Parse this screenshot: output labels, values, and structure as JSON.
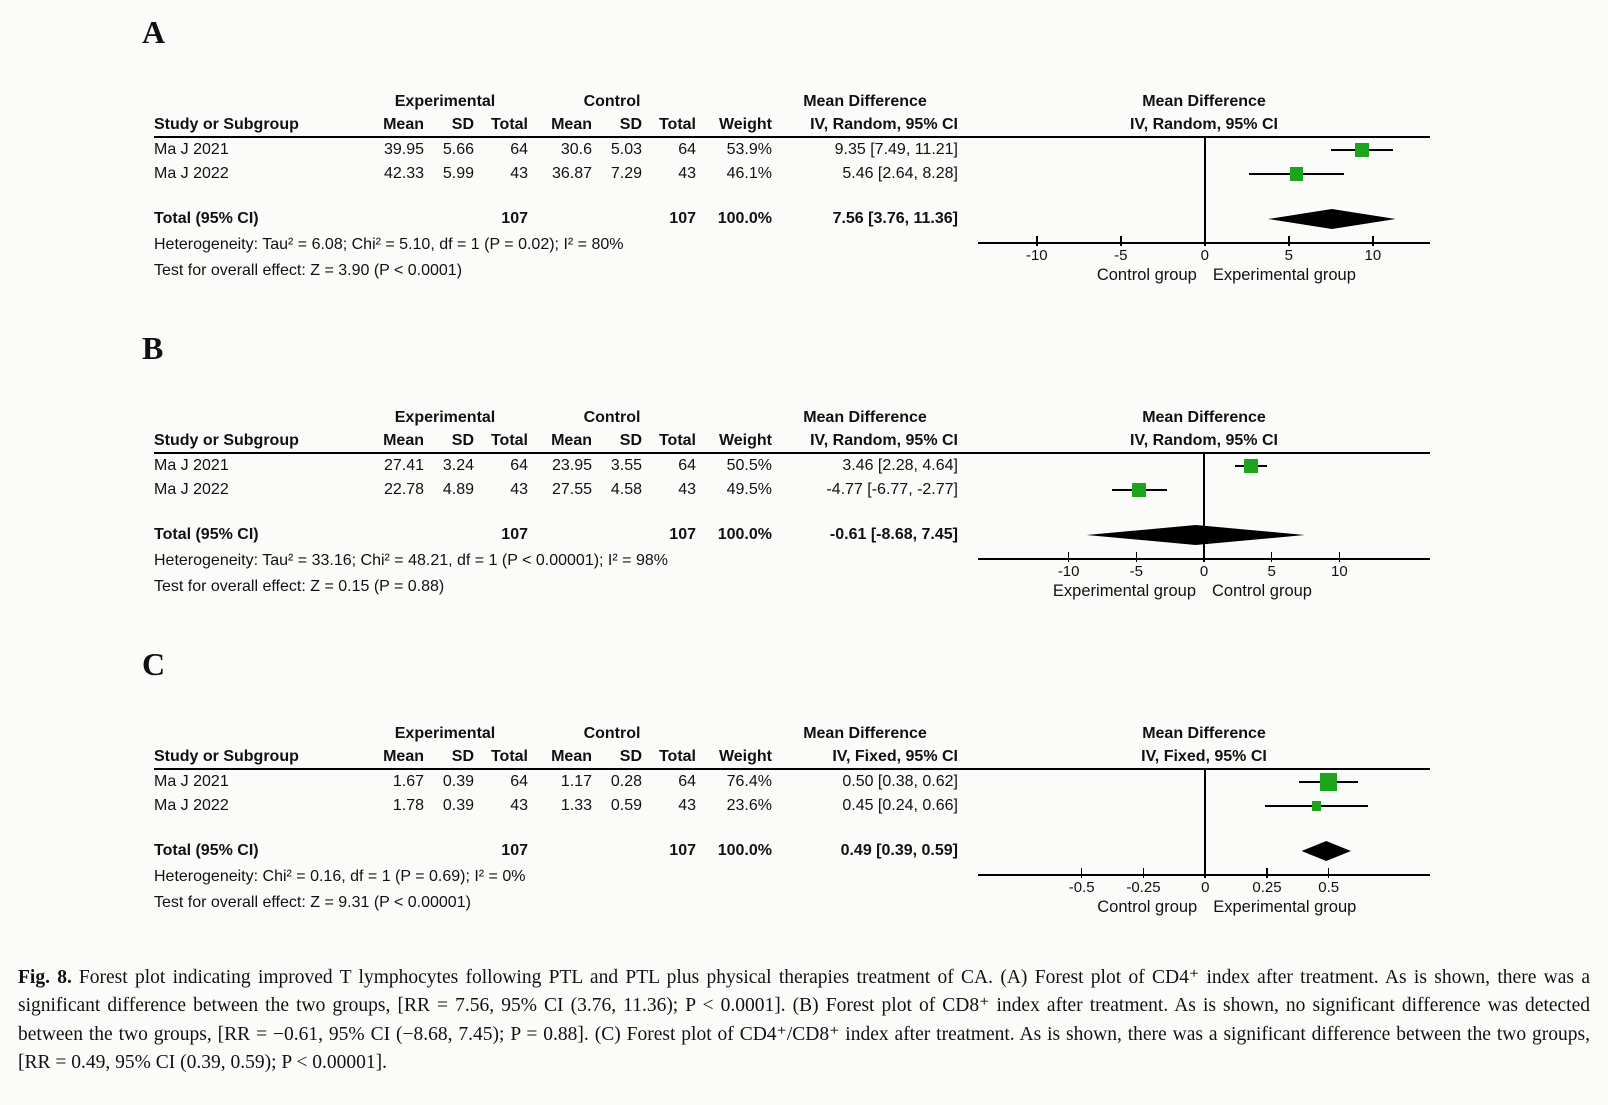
{
  "colors": {
    "square": "#1ca41c",
    "line": "#000000",
    "background": "#fbfbf9"
  },
  "figure": {
    "caption_label": "Fig. 8.",
    "caption_text": "Forest plot indicating improved T lymphocytes following PTL and PTL plus physical therapies treatment of CA. (A) Forest plot of CD4⁺ index after treatment. As is shown, there was a significant difference between the two groups, [RR = 7.56, 95% CI (3.76, 11.36); P < 0.0001]. (B) Forest plot of CD8⁺ index after treatment. As is shown, no significant difference was detected between the two groups, [RR = −0.61, 95% CI (−8.68, 7.45); P = 0.88]. (C) Forest plot of CD4⁺/CD8⁺ index after treatment. As is shown, there was a significant difference between the two groups, [RR = 0.49, 95% CI (0.39, 0.59); P < 0.00001]."
  },
  "chart_data": [
    {
      "type": "forest",
      "panel_label": "A",
      "outcome": "CD4+ index after treatment",
      "headers": {
        "study": "Study or Subgroup",
        "experimental": "Experimental",
        "control": "Control",
        "mean": "Mean",
        "sd": "SD",
        "total": "Total",
        "weight": "Weight",
        "effect_col_title": "Mean Difference",
        "effect_col_sub": "IV, Random, 95% CI",
        "plot_title": "Mean Difference",
        "plot_sub": "IV, Random, 95% CI"
      },
      "studies": [
        {
          "study": "Ma J 2021",
          "exp_mean": "39.95",
          "exp_sd": "5.66",
          "exp_total": "64",
          "ctrl_mean": "30.6",
          "ctrl_sd": "5.03",
          "ctrl_total": "64",
          "weight": "53.9%",
          "effect": "9.35 [7.49, 11.21]",
          "md": 9.35,
          "ci_low": 7.49,
          "ci_high": 11.21,
          "weight_value": 53.9
        },
        {
          "study": "Ma J 2022",
          "exp_mean": "42.33",
          "exp_sd": "5.99",
          "exp_total": "43",
          "ctrl_mean": "36.87",
          "ctrl_sd": "7.29",
          "ctrl_total": "43",
          "weight": "46.1%",
          "effect": "5.46 [2.64, 8.28]",
          "md": 5.46,
          "ci_low": 2.64,
          "ci_high": 8.28,
          "weight_value": 46.1
        }
      ],
      "total": {
        "label": "Total (95% CI)",
        "exp_total": "107",
        "ctrl_total": "107",
        "weight": "100.0%",
        "effect": "7.56 [3.76, 11.36]",
        "md": 7.56,
        "ci_low": 3.76,
        "ci_high": 11.36
      },
      "heterogeneity": "Heterogeneity: Tau² = 6.08; Chi² = 5.10, df = 1 (P = 0.02); I² = 80%",
      "overall_effect": "Test for overall effect: Z = 3.90 (P < 0.0001)",
      "axis": {
        "min": -13.5,
        "max": 13.4,
        "ticks": [
          {
            "value": -10,
            "label": "-10"
          },
          {
            "value": -5,
            "label": "-5"
          },
          {
            "value": 0,
            "label": "0"
          },
          {
            "value": 5,
            "label": "5"
          },
          {
            "value": 10,
            "label": "10"
          }
        ],
        "left_label": "Control group",
        "right_label": "Experimental group"
      }
    },
    {
      "type": "forest",
      "panel_label": "B",
      "outcome": "CD8+ index after treatment",
      "headers": {
        "study": "Study or Subgroup",
        "experimental": "Experimental",
        "control": "Control",
        "mean": "Mean",
        "sd": "SD",
        "total": "Total",
        "weight": "Weight",
        "effect_col_title": "Mean Difference",
        "effect_col_sub": "IV, Random, 95% CI",
        "plot_title": "Mean Difference",
        "plot_sub": "IV, Random, 95% CI"
      },
      "studies": [
        {
          "study": "Ma J 2021",
          "exp_mean": "27.41",
          "exp_sd": "3.24",
          "exp_total": "64",
          "ctrl_mean": "23.95",
          "ctrl_sd": "3.55",
          "ctrl_total": "64",
          "weight": "50.5%",
          "effect": "3.46 [2.28, 4.64]",
          "md": 3.46,
          "ci_low": 2.28,
          "ci_high": 4.64,
          "weight_value": 50.5
        },
        {
          "study": "Ma J 2022",
          "exp_mean": "22.78",
          "exp_sd": "4.89",
          "exp_total": "43",
          "ctrl_mean": "27.55",
          "ctrl_sd": "4.58",
          "ctrl_total": "43",
          "weight": "49.5%",
          "effect": "-4.77 [-6.77, -2.77]",
          "md": -4.77,
          "ci_low": -6.77,
          "ci_high": -2.77,
          "weight_value": 49.5
        }
      ],
      "total": {
        "label": "Total (95% CI)",
        "exp_total": "107",
        "ctrl_total": "107",
        "weight": "100.0%",
        "effect": "-0.61 [-8.68, 7.45]",
        "md": -0.61,
        "ci_low": -8.68,
        "ci_high": 7.45
      },
      "heterogeneity": "Heterogeneity: Tau² = 33.16; Chi² = 48.21, df = 1 (P < 0.00001); I² = 98%",
      "overall_effect": "Test for overall effect: Z = 0.15 (P = 0.88)",
      "axis": {
        "min": -16.7,
        "max": 16.7,
        "ticks": [
          {
            "value": -10,
            "label": "-10"
          },
          {
            "value": -5,
            "label": "-5"
          },
          {
            "value": 0,
            "label": "0"
          },
          {
            "value": 5,
            "label": "5"
          },
          {
            "value": 10,
            "label": "10"
          }
        ],
        "left_label": "Experimental group",
        "right_label": "Control group"
      }
    },
    {
      "type": "forest",
      "panel_label": "C",
      "outcome": "CD4+/CD8+ index after treatment",
      "headers": {
        "study": "Study or Subgroup",
        "experimental": "Experimental",
        "control": "Control",
        "mean": "Mean",
        "sd": "SD",
        "total": "Total",
        "weight": "Weight",
        "effect_col_title": "Mean Difference",
        "effect_col_sub": "IV, Fixed, 95% CI",
        "plot_title": "Mean Difference",
        "plot_sub": "IV, Fixed, 95% CI"
      },
      "studies": [
        {
          "study": "Ma J 2021",
          "exp_mean": "1.67",
          "exp_sd": "0.39",
          "exp_total": "64",
          "ctrl_mean": "1.17",
          "ctrl_sd": "0.28",
          "ctrl_total": "64",
          "weight": "76.4%",
          "effect": "0.50 [0.38, 0.62]",
          "md": 0.5,
          "ci_low": 0.38,
          "ci_high": 0.62,
          "weight_value": 76.4
        },
        {
          "study": "Ma J 2022",
          "exp_mean": "1.78",
          "exp_sd": "0.39",
          "exp_total": "43",
          "ctrl_mean": "1.33",
          "ctrl_sd": "0.59",
          "ctrl_total": "43",
          "weight": "23.6%",
          "effect": "0.45 [0.24, 0.66]",
          "md": 0.45,
          "ci_low": 0.24,
          "ci_high": 0.66,
          "weight_value": 23.6
        }
      ],
      "total": {
        "label": "Total (95% CI)",
        "exp_total": "107",
        "ctrl_total": "107",
        "weight": "100.0%",
        "effect": "0.49 [0.39, 0.59]",
        "md": 0.49,
        "ci_low": 0.39,
        "ci_high": 0.59
      },
      "heterogeneity": "Heterogeneity: Chi² = 0.16, df = 1 (P = 0.69); I² = 0%",
      "overall_effect": "Test for overall effect: Z = 9.31 (P < 0.00001)",
      "axis": {
        "min": -0.92,
        "max": 0.91,
        "ticks": [
          {
            "value": -0.5,
            "label": "-0.5"
          },
          {
            "value": -0.25,
            "label": "-0.25"
          },
          {
            "value": 0,
            "label": "0"
          },
          {
            "value": 0.25,
            "label": "0.25"
          },
          {
            "value": 0.5,
            "label": "0.5"
          }
        ],
        "left_label": "Control group",
        "right_label": "Experimental group"
      }
    }
  ]
}
